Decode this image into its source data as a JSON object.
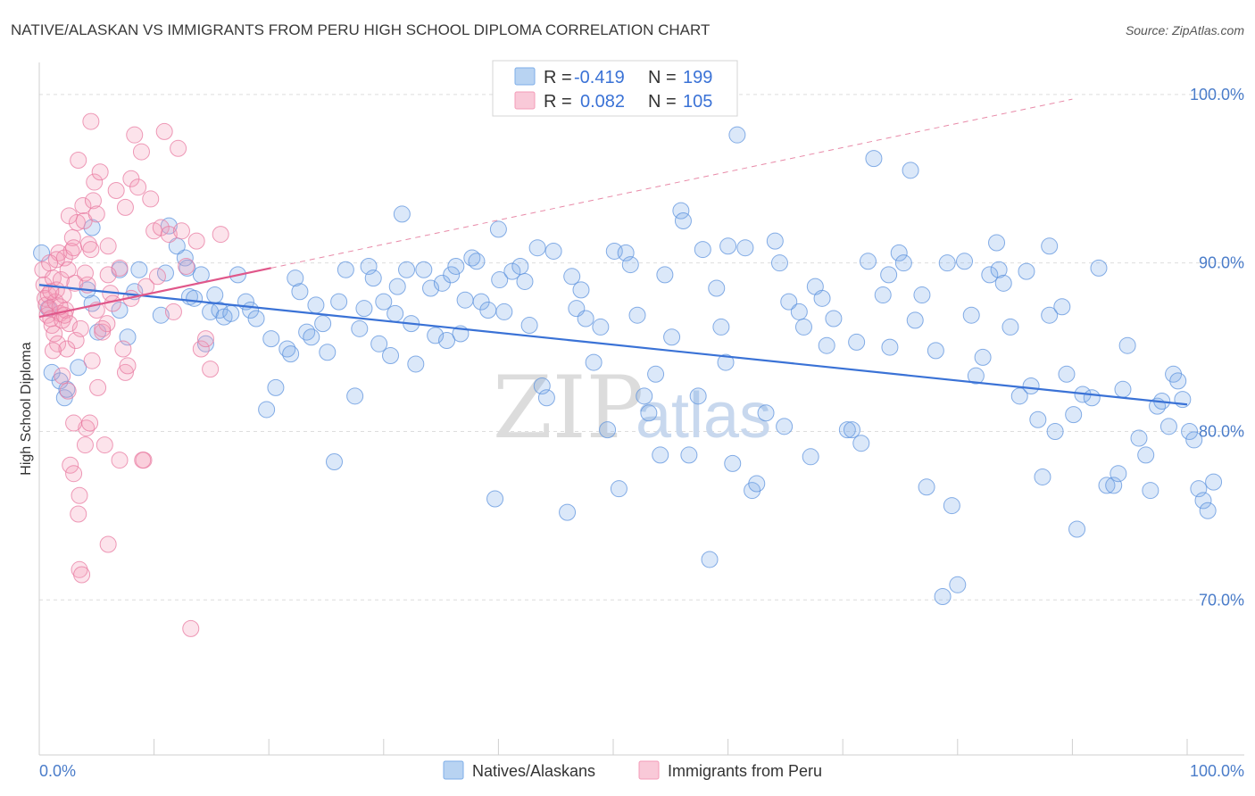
{
  "title": "NATIVE/ALASKAN VS IMMIGRANTS FROM PERU HIGH SCHOOL DIPLOMA CORRELATION CHART",
  "source": "Source: ZipAtlas.com",
  "watermark": {
    "zip": "ZIP",
    "atlas": "atlas"
  },
  "legend": {
    "r_label": "R =",
    "n_label": "N =",
    "rows": [
      {
        "r": "-0.419",
        "n": "199",
        "color": "#7eaee8"
      },
      {
        "r": "0.082",
        "n": "105",
        "color": "#f49cb8"
      }
    ]
  },
  "bottom_legend": [
    {
      "label": "Natives/Alaskans",
      "color": "#7eaee8"
    },
    {
      "label": "Immigrants from Peru",
      "color": "#f49cb8"
    }
  ],
  "chart_data": {
    "type": "scatter",
    "title": "NATIVE/ALASKAN VS IMMIGRANTS FROM PERU HIGH SCHOOL DIPLOMA CORRELATION CHART",
    "xlabel": "",
    "ylabel": "High School Diploma",
    "xlim": [
      0,
      100
    ],
    "ylim": [
      60.8,
      101.9
    ],
    "x_tick_labels": [
      "0.0%",
      "100.0%"
    ],
    "y_ticks": [
      70,
      80,
      90,
      100
    ],
    "y_tick_labels": [
      "70.0%",
      "80.0%",
      "90.0%",
      "100.0%"
    ],
    "grid": true,
    "series": [
      {
        "name": "Natives/Alaskans",
        "color": "#7eaee8",
        "stroke": "#5d93dd",
        "trend": {
          "x": [
            0,
            100
          ],
          "y": [
            88.7,
            81.6
          ],
          "dashed_x": null
        },
        "points": [
          [
            0.2,
            90.6
          ],
          [
            0.8,
            87.3
          ],
          [
            1.1,
            83.5
          ],
          [
            1.8,
            83.0
          ],
          [
            2.2,
            82.0
          ],
          [
            2.4,
            82.5
          ],
          [
            3.4,
            83.8
          ],
          [
            4.2,
            88.4
          ],
          [
            4.6,
            87.6
          ],
          [
            5.1,
            85.9
          ],
          [
            7.0,
            89.6
          ],
          [
            7.0,
            87.2
          ],
          [
            7.7,
            85.6
          ],
          [
            8.3,
            88.3
          ],
          [
            8.7,
            89.6
          ],
          [
            10.6,
            86.9
          ],
          [
            11.0,
            89.4
          ],
          [
            11.3,
            92.2
          ],
          [
            12.7,
            90.3
          ],
          [
            12.9,
            89.7
          ],
          [
            13.1,
            88.0
          ],
          [
            13.5,
            87.9
          ],
          [
            14.1,
            89.3
          ],
          [
            14.5,
            85.2
          ],
          [
            14.9,
            87.1
          ],
          [
            15.3,
            88.1
          ],
          [
            15.7,
            87.2
          ],
          [
            16.1,
            86.8
          ],
          [
            16.7,
            87.0
          ],
          [
            17.3,
            89.3
          ],
          [
            18.0,
            87.7
          ],
          [
            18.4,
            87.2
          ],
          [
            18.9,
            86.7
          ],
          [
            19.8,
            81.3
          ],
          [
            20.2,
            85.5
          ],
          [
            20.6,
            82.6
          ],
          [
            21.6,
            84.9
          ],
          [
            21.9,
            84.6
          ],
          [
            22.3,
            89.1
          ],
          [
            22.7,
            88.3
          ],
          [
            23.3,
            85.9
          ],
          [
            23.7,
            85.6
          ],
          [
            24.1,
            87.5
          ],
          [
            24.7,
            86.4
          ],
          [
            25.1,
            84.7
          ],
          [
            25.7,
            78.2
          ],
          [
            26.1,
            87.7
          ],
          [
            26.7,
            89.6
          ],
          [
            27.5,
            82.1
          ],
          [
            27.9,
            86.1
          ],
          [
            28.3,
            87.3
          ],
          [
            28.7,
            89.8
          ],
          [
            29.1,
            89.1
          ],
          [
            29.6,
            85.2
          ],
          [
            30.0,
            87.7
          ],
          [
            30.6,
            84.5
          ],
          [
            31.2,
            88.6
          ],
          [
            31.6,
            92.9
          ],
          [
            32.0,
            89.6
          ],
          [
            32.4,
            86.4
          ],
          [
            32.8,
            84.0
          ],
          [
            33.5,
            89.6
          ],
          [
            34.1,
            88.5
          ],
          [
            34.5,
            85.7
          ],
          [
            35.1,
            88.8
          ],
          [
            35.5,
            85.4
          ],
          [
            35.9,
            89.3
          ],
          [
            36.3,
            89.8
          ],
          [
            36.7,
            85.8
          ],
          [
            37.1,
            87.8
          ],
          [
            37.7,
            90.3
          ],
          [
            38.1,
            90.1
          ],
          [
            38.5,
            87.7
          ],
          [
            39.1,
            87.2
          ],
          [
            39.7,
            76.0
          ],
          [
            40.1,
            89.0
          ],
          [
            40.5,
            87.1
          ],
          [
            41.2,
            89.5
          ],
          [
            41.9,
            89.8
          ],
          [
            42.3,
            88.9
          ],
          [
            42.7,
            86.3
          ],
          [
            43.4,
            90.9
          ],
          [
            43.8,
            82.7
          ],
          [
            44.2,
            82.0
          ],
          [
            44.8,
            90.7
          ],
          [
            46.0,
            75.2
          ],
          [
            46.4,
            89.2
          ],
          [
            46.8,
            87.3
          ],
          [
            47.2,
            88.4
          ],
          [
            47.6,
            86.7
          ],
          [
            48.3,
            84.1
          ],
          [
            48.9,
            86.2
          ],
          [
            49.5,
            80.1
          ],
          [
            50.1,
            90.7
          ],
          [
            50.5,
            76.6
          ],
          [
            51.1,
            90.6
          ],
          [
            51.5,
            89.9
          ],
          [
            52.1,
            86.9
          ],
          [
            52.7,
            82.1
          ],
          [
            53.1,
            81.1
          ],
          [
            53.7,
            83.4
          ],
          [
            54.1,
            78.6
          ],
          [
            54.5,
            89.3
          ],
          [
            55.1,
            85.6
          ],
          [
            55.9,
            93.1
          ],
          [
            56.1,
            92.5
          ],
          [
            56.6,
            78.6
          ],
          [
            57.4,
            82.1
          ],
          [
            57.8,
            90.8
          ],
          [
            58.4,
            72.4
          ],
          [
            59.0,
            88.5
          ],
          [
            59.4,
            86.2
          ],
          [
            59.8,
            84.1
          ],
          [
            60.4,
            78.1
          ],
          [
            60.8,
            97.6
          ],
          [
            61.5,
            90.9
          ],
          [
            62.1,
            76.5
          ],
          [
            62.5,
            76.9
          ],
          [
            63.3,
            81.1
          ],
          [
            64.1,
            91.3
          ],
          [
            64.5,
            90.0
          ],
          [
            64.9,
            80.3
          ],
          [
            65.3,
            87.7
          ],
          [
            66.2,
            87.1
          ],
          [
            66.6,
            86.2
          ],
          [
            67.2,
            78.5
          ],
          [
            67.6,
            88.6
          ],
          [
            68.2,
            87.9
          ],
          [
            68.6,
            85.1
          ],
          [
            69.2,
            86.7
          ],
          [
            70.4,
            80.1
          ],
          [
            70.8,
            80.1
          ],
          [
            71.2,
            85.3
          ],
          [
            71.6,
            79.3
          ],
          [
            72.2,
            90.1
          ],
          [
            72.7,
            96.2
          ],
          [
            73.5,
            88.1
          ],
          [
            74.1,
            85.0
          ],
          [
            74.9,
            90.6
          ],
          [
            75.3,
            90.0
          ],
          [
            75.9,
            95.5
          ],
          [
            76.3,
            86.6
          ],
          [
            76.9,
            88.1
          ],
          [
            77.3,
            76.7
          ],
          [
            78.1,
            84.8
          ],
          [
            78.7,
            70.2
          ],
          [
            79.1,
            90.0
          ],
          [
            79.5,
            75.6
          ],
          [
            80.0,
            70.9
          ],
          [
            80.6,
            90.1
          ],
          [
            81.2,
            86.9
          ],
          [
            81.6,
            83.3
          ],
          [
            82.2,
            84.4
          ],
          [
            82.8,
            89.3
          ],
          [
            83.4,
            91.2
          ],
          [
            83.6,
            89.6
          ],
          [
            84.0,
            88.8
          ],
          [
            84.6,
            86.2
          ],
          [
            85.4,
            82.1
          ],
          [
            86.0,
            89.5
          ],
          [
            86.4,
            82.7
          ],
          [
            87.0,
            80.7
          ],
          [
            87.4,
            77.3
          ],
          [
            88.0,
            86.9
          ],
          [
            88.5,
            80.0
          ],
          [
            89.1,
            87.4
          ],
          [
            89.5,
            83.4
          ],
          [
            90.1,
            81.0
          ],
          [
            90.4,
            74.2
          ],
          [
            90.9,
            82.2
          ],
          [
            91.7,
            82.0
          ],
          [
            92.3,
            89.7
          ],
          [
            93.0,
            76.8
          ],
          [
            93.6,
            76.8
          ],
          [
            94.0,
            77.5
          ],
          [
            94.4,
            82.5
          ],
          [
            94.8,
            85.1
          ],
          [
            95.8,
            79.6
          ],
          [
            96.4,
            78.6
          ],
          [
            96.8,
            76.5
          ],
          [
            97.4,
            81.5
          ],
          [
            97.8,
            81.8
          ],
          [
            98.4,
            80.3
          ],
          [
            98.8,
            83.4
          ],
          [
            99.2,
            83.0
          ],
          [
            99.6,
            81.9
          ],
          [
            100.2,
            80.0
          ],
          [
            100.6,
            79.5
          ],
          [
            101.0,
            76.6
          ],
          [
            101.4,
            75.9
          ],
          [
            101.8,
            75.3
          ],
          [
            102.3,
            77.0
          ],
          [
            4.6,
            92.1
          ],
          [
            31.0,
            87.0
          ],
          [
            60.0,
            91.0
          ],
          [
            88.0,
            91.0
          ],
          [
            12.0,
            91.0
          ],
          [
            40.0,
            92.0
          ],
          [
            74.0,
            89.3
          ]
        ]
      },
      {
        "name": "Immigrants from Peru",
        "color": "#f49cb8",
        "stroke": "#e87aa0",
        "trend": {
          "x": [
            0,
            20.2
          ],
          "y": [
            86.8,
            89.7
          ],
          "dashed_x": [
            20.2,
            90
          ]
        },
        "points": [
          [
            0.3,
            89.6
          ],
          [
            0.4,
            88.7
          ],
          [
            0.5,
            87.9
          ],
          [
            0.6,
            87.5
          ],
          [
            0.7,
            86.9
          ],
          [
            0.8,
            88.1
          ],
          [
            0.9,
            87.3
          ],
          [
            1.0,
            86.7
          ],
          [
            1.1,
            86.3
          ],
          [
            1.2,
            89.1
          ],
          [
            1.3,
            85.8
          ],
          [
            1.4,
            87.7
          ],
          [
            1.5,
            88.4
          ],
          [
            1.6,
            85.2
          ],
          [
            1.7,
            90.6
          ],
          [
            1.8,
            87.0
          ],
          [
            1.9,
            89.0
          ],
          [
            2.0,
            86.6
          ],
          [
            2.1,
            88.1
          ],
          [
            2.2,
            90.3
          ],
          [
            2.3,
            87.2
          ],
          [
            2.4,
            84.9
          ],
          [
            2.5,
            89.6
          ],
          [
            2.6,
            86.4
          ],
          [
            2.7,
            78.0
          ],
          [
            2.8,
            90.7
          ],
          [
            2.9,
            91.5
          ],
          [
            3.0,
            77.5
          ],
          [
            3.1,
            88.8
          ],
          [
            3.2,
            85.4
          ],
          [
            3.3,
            92.4
          ],
          [
            3.4,
            75.1
          ],
          [
            3.5,
            71.8
          ],
          [
            3.6,
            86.1
          ],
          [
            3.7,
            71.5
          ],
          [
            3.8,
            93.4
          ],
          [
            3.9,
            92.5
          ],
          [
            4.1,
            80.2
          ],
          [
            4.2,
            88.7
          ],
          [
            4.3,
            91.1
          ],
          [
            4.4,
            80.5
          ],
          [
            4.5,
            90.8
          ],
          [
            4.6,
            84.2
          ],
          [
            4.7,
            93.7
          ],
          [
            4.8,
            94.8
          ],
          [
            5.1,
            82.6
          ],
          [
            5.3,
            95.4
          ],
          [
            5.5,
            85.9
          ],
          [
            5.7,
            79.2
          ],
          [
            5.9,
            86.4
          ],
          [
            6.0,
            73.3
          ],
          [
            6.2,
            88.2
          ],
          [
            6.4,
            87.6
          ],
          [
            6.7,
            94.3
          ],
          [
            7.0,
            89.7
          ],
          [
            7.3,
            84.9
          ],
          [
            7.5,
            83.5
          ],
          [
            7.7,
            83.9
          ],
          [
            8.0,
            95.0
          ],
          [
            8.3,
            97.6
          ],
          [
            8.6,
            94.5
          ],
          [
            8.9,
            96.6
          ],
          [
            9.1,
            78.3
          ],
          [
            9.3,
            88.6
          ],
          [
            9.7,
            93.8
          ],
          [
            10.0,
            91.9
          ],
          [
            10.3,
            89.2
          ],
          [
            10.6,
            92.1
          ],
          [
            10.9,
            97.8
          ],
          [
            11.3,
            91.7
          ],
          [
            11.7,
            87.1
          ],
          [
            12.1,
            96.8
          ],
          [
            12.4,
            91.9
          ],
          [
            12.8,
            89.8
          ],
          [
            13.2,
            68.3
          ],
          [
            13.7,
            91.3
          ],
          [
            14.1,
            84.9
          ],
          [
            14.5,
            85.5
          ],
          [
            14.9,
            83.7
          ],
          [
            15.8,
            91.7
          ],
          [
            2.2,
            86.9
          ],
          [
            2.6,
            92.8
          ],
          [
            3.0,
            90.9
          ],
          [
            3.4,
            96.1
          ],
          [
            4.0,
            89.4
          ],
          [
            4.5,
            98.4
          ],
          [
            5.0,
            87.2
          ],
          [
            5.5,
            86.1
          ],
          [
            6.0,
            89.3
          ],
          [
            7.0,
            78.3
          ],
          [
            8.0,
            87.9
          ],
          [
            9.0,
            78.3
          ],
          [
            1.0,
            88.3
          ],
          [
            1.5,
            90.2
          ],
          [
            2.0,
            83.3
          ],
          [
            2.5,
            82.4
          ],
          [
            3.0,
            80.5
          ],
          [
            3.5,
            76.2
          ],
          [
            4.0,
            79.2
          ],
          [
            5.0,
            92.9
          ],
          [
            6.0,
            91.0
          ],
          [
            7.5,
            93.3
          ],
          [
            1.2,
            84.8
          ],
          [
            0.9,
            90.0
          ],
          [
            1.8,
            87.4
          ]
        ]
      }
    ]
  }
}
